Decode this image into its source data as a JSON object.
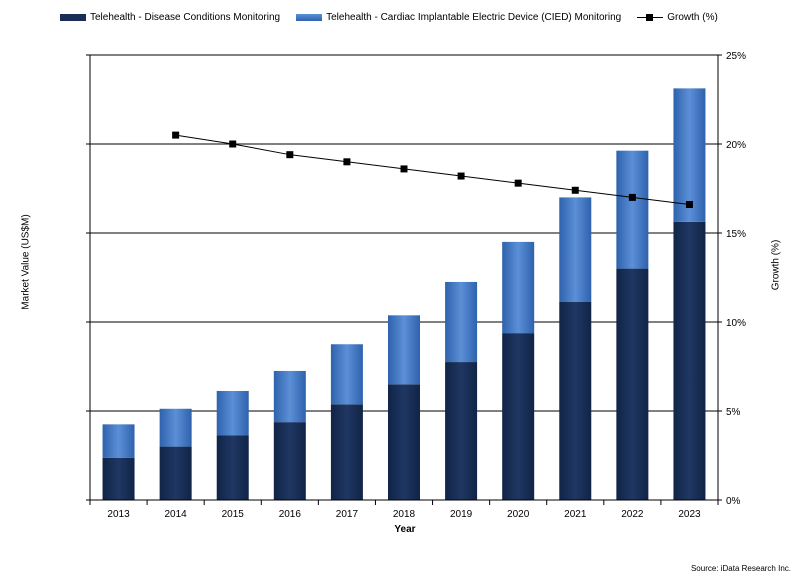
{
  "chart_data": {
    "type": "bar",
    "stacked": true,
    "categories": [
      "2013",
      "2014",
      "2015",
      "2016",
      "2017",
      "2018",
      "2019",
      "2020",
      "2021",
      "2022",
      "2023"
    ],
    "series": [
      {
        "name": "Telehealth - Disease Conditions Monitoring",
        "values": [
          19,
          24,
          29,
          35,
          43,
          52,
          62,
          75,
          89,
          104,
          125
        ],
        "color": "#1a2e55"
      },
      {
        "name": "Telehealth - Cardiac Implantable Electric Device (CIED) Monitoring",
        "values": [
          15,
          17,
          20,
          23,
          27,
          31,
          36,
          41,
          47,
          53,
          60
        ],
        "color": "#3f77c4"
      }
    ],
    "line_series": {
      "name": "Growth (%)",
      "x": [
        "2014",
        "2015",
        "2016",
        "2017",
        "2018",
        "2019",
        "2020",
        "2021",
        "2022",
        "2023"
      ],
      "values": [
        20.5,
        20.0,
        19.4,
        19.0,
        18.6,
        18.2,
        17.8,
        17.4,
        17.0,
        16.6
      ],
      "axis": "right",
      "color": "#000000"
    },
    "xlabel": "Year",
    "ylabel": "Market Value (US$M)",
    "y2label": "Growth (%)",
    "ylim": [
      0,
      200
    ],
    "y2lim": [
      0,
      25
    ],
    "y2ticks": [
      "0%",
      "5%",
      "10%",
      "15%",
      "20%",
      "25%"
    ],
    "gridlines": true,
    "legend_position": "top"
  },
  "source": "Source: iData Research Inc."
}
